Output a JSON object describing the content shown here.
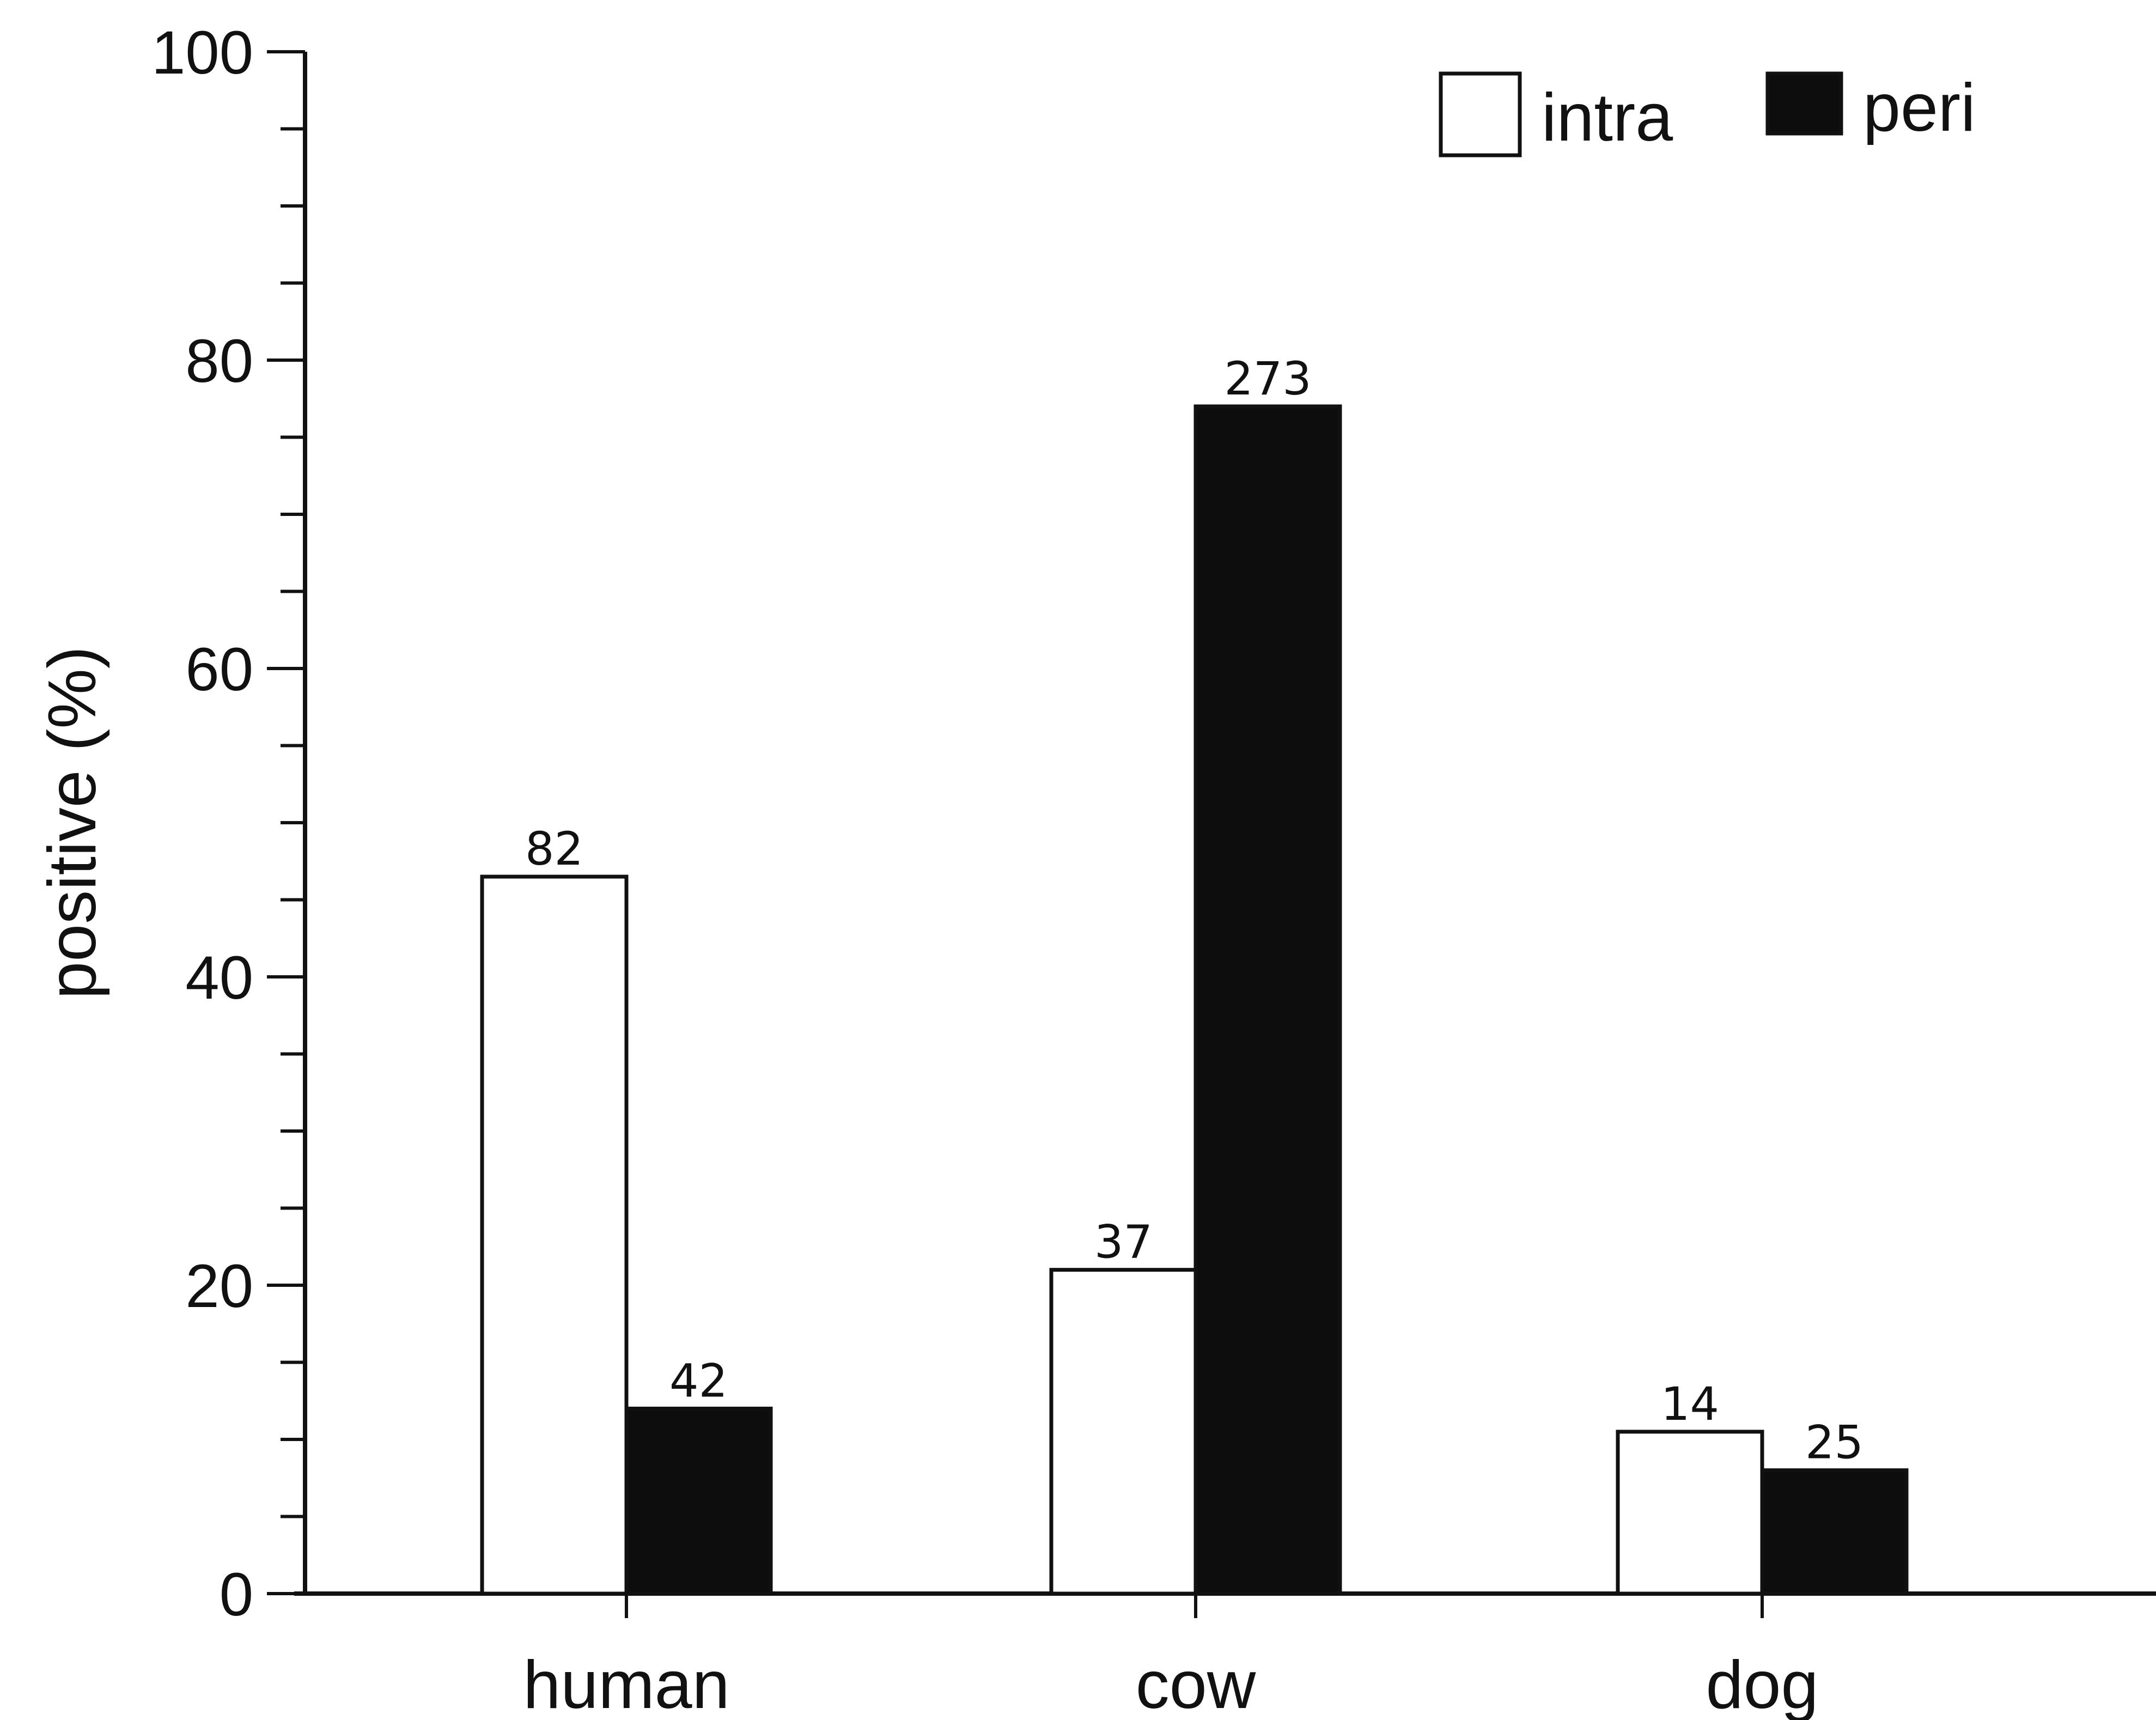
{
  "chart_data": {
    "type": "bar",
    "title": "",
    "xlabel": "",
    "ylabel": "positive (%)",
    "ylim": [
      0,
      100
    ],
    "yticks": [
      0,
      20,
      40,
      60,
      80,
      100
    ],
    "minor_tick_step": 5,
    "grid": false,
    "legend_position": "top-right",
    "categories": [
      "human",
      "cow",
      "dog"
    ],
    "series": [
      {
        "name": "intra",
        "fill": "#ffffff",
        "stroke": "#111111",
        "values": [
          46.5,
          21,
          10.5
        ],
        "labels": [
          "82",
          "37",
          "14"
        ]
      },
      {
        "name": "peri",
        "fill": "#0d0d0d",
        "stroke": "#111111",
        "values": [
          12,
          77,
          8
        ],
        "labels": [
          "42",
          "273",
          "25"
        ]
      }
    ]
  }
}
